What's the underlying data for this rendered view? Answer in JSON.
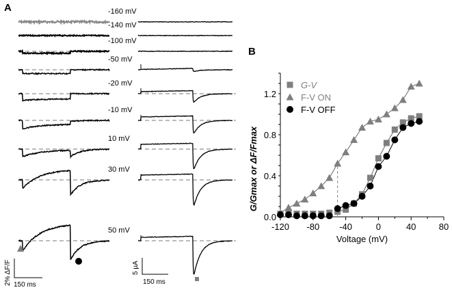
{
  "panel_labels": {
    "a": "A",
    "b": "B"
  },
  "panel_a": {
    "voltage_labels": [
      "-160 mV",
      "-140 mV",
      "-100 mV",
      "-50 mV",
      "-20 mV",
      "-10 mV",
      "10 mV",
      "30 mV",
      "50 mV"
    ],
    "fluorescence_traces": [
      {
        "on_dip_pct": 0,
        "recovery_pct": 0,
        "off_dip_pct": 0
      },
      {
        "on_dip_pct": 0,
        "recovery_pct": 0,
        "off_dip_pct": 0
      },
      {
        "on_dip_pct": 0.2,
        "recovery_pct": 0,
        "off_dip_pct": 0
      },
      {
        "on_dip_pct": 0.4,
        "recovery_pct": 0,
        "off_dip_pct": 0
      },
      {
        "on_dip_pct": 0.7,
        "recovery_pct": 0.15,
        "off_dip_pct": 0
      },
      {
        "on_dip_pct": 0.9,
        "recovery_pct": 0.5,
        "off_dip_pct": 0.1
      },
      {
        "on_dip_pct": 0.8,
        "recovery_pct": 0.7,
        "off_dip_pct": 0.8
      },
      {
        "on_dip_pct": 0.9,
        "recovery_pct": 2.0,
        "off_dip_pct": 1.6
      },
      {
        "on_dip_pct": 1.1,
        "recovery_pct": 2.9,
        "off_dip_pct": 2.0
      }
    ],
    "current_traces": [
      {
        "step_uA": 0,
        "tail_uA": 0
      },
      {
        "step_uA": 0,
        "tail_uA": 0
      },
      {
        "step_uA": 0,
        "tail_uA": 0
      },
      {
        "step_uA": 0.1,
        "tail_uA": 0.6
      },
      {
        "step_uA": 0.6,
        "tail_uA": 3
      },
      {
        "step_uA": 1,
        "tail_uA": 4.5
      },
      {
        "step_uA": 1.4,
        "tail_uA": 7
      },
      {
        "step_uA": 1.4,
        "tail_uA": 9
      },
      {
        "step_uA": 1,
        "tail_uA": 12
      }
    ],
    "scale_bar_left": {
      "y_label": "2% ΔF/F",
      "x_label": "150 ms"
    },
    "scale_bar_right": {
      "y_label": "5 µA",
      "x_label": "150 ms"
    }
  },
  "chart_data": {
    "type": "scatter",
    "xlabel": "Voltage (mV)",
    "ylabel": "G/Gmax or ΔF/Fmax",
    "xlim": [
      -120,
      80
    ],
    "ylim": [
      0,
      1.4
    ],
    "xticks": [
      "-120",
      "-80",
      "-40",
      "0",
      "40",
      "80"
    ],
    "yticks": [
      "0.0",
      "0.4",
      "0.8",
      "1.2"
    ],
    "legend_placement": "top-left",
    "x": [
      -120,
      -110,
      -100,
      -90,
      -80,
      -70,
      -60,
      -50,
      -40,
      -30,
      -20,
      -10,
      0,
      10,
      20,
      30,
      40,
      50
    ],
    "series": [
      {
        "name": "G-V",
        "marker": "square",
        "color": "#7f7f7f",
        "values": [
          0.03,
          0.03,
          0.03,
          0.03,
          0.03,
          0.03,
          0.04,
          0.05,
          0.07,
          0.13,
          0.22,
          0.38,
          0.57,
          0.72,
          0.85,
          0.92,
          0.96,
          0.98
        ]
      },
      {
        "name": "F-V ON",
        "marker": "triangle",
        "color": "#7f7f7f",
        "values": [
          0.04,
          0.09,
          0.13,
          0.17,
          0.23,
          0.3,
          0.38,
          0.52,
          0.63,
          0.75,
          0.87,
          0.93,
          0.95,
          1.0,
          1.06,
          1.14,
          1.27,
          1.3
        ]
      },
      {
        "name": "F-V OFF",
        "marker": "circle",
        "color": "#000000",
        "values": [
          0.02,
          0.02,
          0.01,
          0.01,
          0.01,
          0.01,
          0.01,
          0.08,
          0.11,
          0.13,
          0.2,
          0.3,
          0.49,
          0.59,
          0.75,
          0.87,
          0.91,
          0.93
        ]
      }
    ],
    "dashed_marker_voltage": -50
  }
}
